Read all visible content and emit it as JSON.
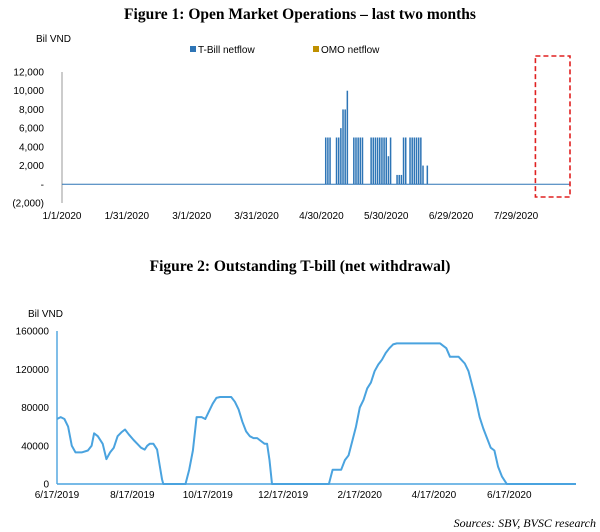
{
  "source": "Sources: SBV, BVSC research",
  "colors": {
    "tbill": "#2e75b6",
    "omo": "#bf9000",
    "line": "#4aa3df",
    "axis": "#7f7f7f",
    "highlight": "#e02020"
  },
  "chart_data": [
    {
      "type": "bar",
      "title": "Figure 1: Open Market Operations – last two months",
      "unit_label": "Bil VND",
      "y_ticks": [
        "12,000",
        "10,000",
        "8,000",
        "6,000",
        "4,000",
        "2,000",
        "-",
        "(2,000)"
      ],
      "y_values": [
        12000,
        10000,
        8000,
        6000,
        4000,
        2000,
        0,
        -2000
      ],
      "ylim": [
        -2000,
        12000
      ],
      "x_ticks": [
        "1/1/2020",
        "1/31/2020",
        "3/1/2020",
        "3/31/2020",
        "4/30/2020",
        "5/30/2020",
        "6/29/2020",
        "7/29/2020"
      ],
      "x_tick_days": [
        0,
        30,
        60,
        90,
        120,
        150,
        180,
        210
      ],
      "xlim_days": [
        0,
        235
      ],
      "legend": [
        "T-Bill netflow",
        "OMO netflow"
      ],
      "highlight_range_days": [
        219,
        235
      ],
      "series": [
        {
          "name": "T-Bill netflow",
          "days": [
            122,
            123,
            124,
            127,
            128,
            129,
            130,
            131,
            132,
            135,
            136,
            137,
            138,
            139,
            143,
            144,
            145,
            146,
            147,
            148,
            149,
            150,
            151,
            152,
            155,
            156,
            157,
            158,
            159,
            161,
            162,
            163,
            164,
            165,
            166,
            167,
            169
          ],
          "values": [
            5000,
            5000,
            5000,
            5000,
            5000,
            6000,
            8000,
            8000,
            10000,
            5000,
            5000,
            5000,
            5000,
            5000,
            5000,
            5000,
            5000,
            5000,
            5000,
            5000,
            5000,
            5000,
            3000,
            5000,
            1000,
            1000,
            1000,
            5000,
            5000,
            5000,
            5000,
            5000,
            5000,
            5000,
            5000,
            2000,
            2000
          ]
        },
        {
          "name": "OMO netflow",
          "days": [],
          "values": []
        }
      ]
    },
    {
      "type": "line",
      "title": "Figure 2: Outstanding T-bill (net withdrawal)",
      "unit_label": "Bil VND",
      "y_ticks": [
        "160000",
        "120000",
        "80000",
        "40000",
        "0"
      ],
      "y_values": [
        160000,
        120000,
        80000,
        40000,
        0
      ],
      "ylim": [
        0,
        160000
      ],
      "x_ticks": [
        "6/17/2019",
        "8/17/2019",
        "10/17/2019",
        "12/17/2019",
        "2/17/2020",
        "4/17/2020",
        "6/17/2020"
      ],
      "x_tick_days": [
        0,
        61,
        122,
        183,
        245,
        305,
        366
      ],
      "xlim_days": [
        0,
        420
      ],
      "series": [
        {
          "name": "Outstanding T-bill",
          "days": [
            0,
            3,
            6,
            9,
            12,
            15,
            20,
            25,
            28,
            30,
            33,
            37,
            40,
            43,
            46,
            49,
            52,
            55,
            58,
            62,
            65,
            68,
            71,
            73,
            75,
            78,
            81,
            83,
            85,
            86,
            88,
            90,
            92,
            95,
            98,
            101,
            104,
            107,
            110,
            113,
            117,
            120,
            123,
            126,
            129,
            132,
            135,
            138,
            141,
            144,
            147,
            150,
            153,
            156,
            159,
            162,
            165,
            168,
            170,
            172,
            174,
            178,
            185,
            195,
            205,
            215,
            220,
            223,
            226,
            230,
            233,
            236,
            239,
            242,
            245,
            248,
            251,
            254,
            257,
            260,
            263,
            266,
            269,
            272,
            275,
            280,
            290,
            300,
            310,
            315,
            318,
            321,
            325,
            330,
            333,
            336,
            339,
            342,
            345,
            348,
            351,
            354,
            357,
            360,
            364,
            367,
            370,
            380,
            400,
            420
          ],
          "values": [
            68000,
            70000,
            68000,
            60000,
            40000,
            33000,
            33000,
            35000,
            40000,
            53000,
            50000,
            42000,
            26000,
            33000,
            38000,
            50000,
            54000,
            57000,
            52000,
            46000,
            42000,
            38000,
            36000,
            40000,
            42000,
            42000,
            36000,
            20000,
            5000,
            0,
            0,
            0,
            0,
            0,
            0,
            0,
            0,
            15000,
            35000,
            70000,
            70000,
            68000,
            76000,
            84000,
            90000,
            91000,
            91000,
            91000,
            91000,
            86000,
            78000,
            65000,
            55000,
            50000,
            48000,
            48000,
            45000,
            42000,
            42000,
            25000,
            0,
            0,
            0,
            0,
            0,
            0,
            0,
            15000,
            15000,
            15000,
            25000,
            30000,
            45000,
            60000,
            80000,
            88000,
            100000,
            106000,
            118000,
            125000,
            130000,
            137000,
            142000,
            146000,
            147000,
            147000,
            147000,
            147000,
            147000,
            142000,
            133000,
            133000,
            133000,
            126000,
            118000,
            103000,
            88000,
            70000,
            58000,
            48000,
            38000,
            35000,
            18000,
            8000,
            0,
            0,
            0,
            0,
            0,
            0
          ]
        }
      ]
    }
  ]
}
